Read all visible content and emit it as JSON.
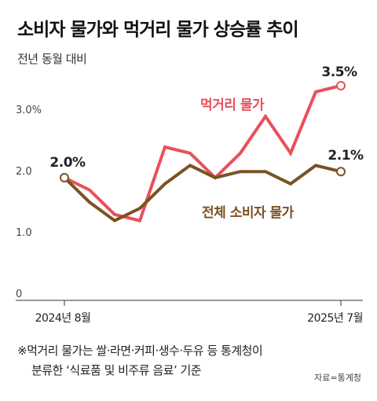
{
  "title": "소비자 물가와 먹거리 물가 상승률 추이",
  "subtitle": "전년 동월 대비",
  "footnote": {
    "line1": "※먹거리 물가는 쌀·라면·커피·생수·두유 등 통계청이",
    "line2": "분류한 ‘식료품 및 비주류 음료’ 기준"
  },
  "source": "자료=통계청",
  "chart_data": {
    "type": "line",
    "x": [
      "2024-08",
      "2024-09",
      "2024-10",
      "2024-11",
      "2024-12",
      "2025-01",
      "2025-02",
      "2025-03",
      "2025-04",
      "2025-05",
      "2025-06",
      "2025-07"
    ],
    "x_tick_labels": [
      "2024년 8월",
      "2025년 7월"
    ],
    "y_tick_labels": [
      "0",
      "1.0",
      "2.0",
      "3.0%"
    ],
    "ylim": [
      0,
      4.0
    ],
    "series": [
      {
        "name": "먹거리 물가",
        "color": "#e8505b",
        "values": [
          2.0,
          1.8,
          1.4,
          1.3,
          2.5,
          2.4,
          2.0,
          2.4,
          3.0,
          2.4,
          3.4,
          3.5
        ],
        "end_label": "3.5%"
      },
      {
        "name": "전체 소비자 물가",
        "color": "#7a5222",
        "values": [
          2.0,
          1.6,
          1.3,
          1.5,
          1.9,
          2.2,
          2.0,
          2.1,
          2.1,
          1.9,
          2.2,
          2.1
        ],
        "end_label": "2.1%"
      }
    ],
    "start_label": "2.0%",
    "grid": false
  }
}
